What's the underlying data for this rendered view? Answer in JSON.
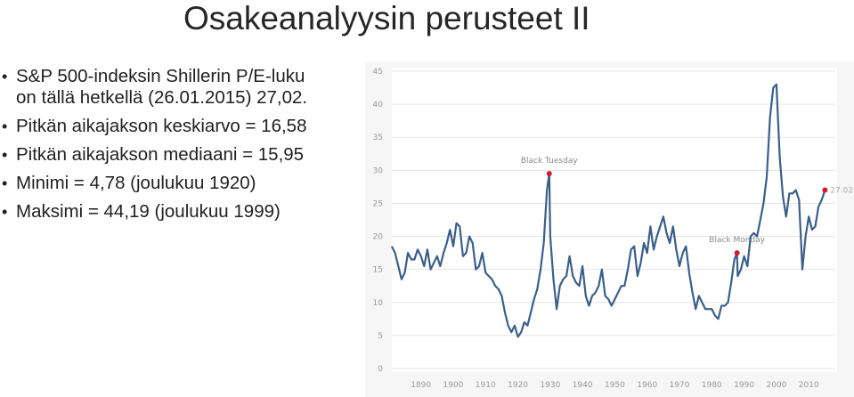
{
  "slide": {
    "title": "Osakeanalyysin perusteet II",
    "bullets": [
      "S&P 500-indeksin Shillerin P/E-luku\non tällä hetkellä (26.01.2015) 27,02.",
      "Pitkän aikajakson keskiarvo = 16,58",
      "Pitkän aikajakson mediaani = 15,95",
      "Minimi = 4,78 (joulukuu 1920)",
      "Maksimi = 44,19 (joulukuu 1999)"
    ]
  },
  "colors": {
    "line": "#3a5f8a",
    "marker": "#d01c2c",
    "grid": "#e6e6e6",
    "background": "#f6f6f6"
  },
  "chart_data": {
    "type": "line",
    "title": "",
    "xlabel": "",
    "ylabel": "",
    "xlim": [
      1881,
      2016
    ],
    "ylim": [
      0,
      45
    ],
    "yticks": [
      0,
      5,
      10,
      15,
      20,
      25,
      30,
      35,
      40,
      45
    ],
    "xticks": [
      1890,
      1900,
      1910,
      1920,
      1930,
      1940,
      1950,
      1960,
      1970,
      1980,
      1990,
      2000,
      2010
    ],
    "grid": "horizontal",
    "series": [
      {
        "x": [
          1881,
          1882,
          1883,
          1884,
          1885,
          1886,
          1887,
          1888,
          1889,
          1890,
          1891,
          1892,
          1893,
          1894,
          1895,
          1896,
          1897,
          1898,
          1899,
          1900,
          1901,
          1902,
          1903,
          1904,
          1905,
          1906,
          1907,
          1908,
          1909,
          1910,
          1911,
          1912,
          1913,
          1914,
          1915,
          1916,
          1917,
          1918,
          1919,
          1920,
          1921,
          1922,
          1923,
          1924,
          1925,
          1926,
          1927,
          1928,
          1929,
          1929.7,
          1930,
          1931,
          1932,
          1933,
          1934,
          1935,
          1936,
          1937,
          1938,
          1939,
          1940,
          1941,
          1942,
          1943,
          1944,
          1945,
          1946,
          1947,
          1948,
          1949,
          1950,
          1951,
          1952,
          1953,
          1954,
          1955,
          1956,
          1957,
          1958,
          1959,
          1960,
          1961,
          1962,
          1963,
          1964,
          1965,
          1966,
          1967,
          1968,
          1969,
          1970,
          1971,
          1972,
          1973,
          1974,
          1975,
          1976,
          1977,
          1978,
          1979,
          1980,
          1981,
          1982,
          1983,
          1984,
          1985,
          1986,
          1987,
          1987.8,
          1988,
          1989,
          1990,
          1991,
          1992,
          1993,
          1994,
          1995,
          1996,
          1997,
          1998,
          1999,
          2000,
          2001,
          2002,
          2003,
          2004,
          2005,
          2006,
          2007,
          2008,
          2009,
          2010,
          2011,
          2012,
          2013,
          2014,
          2015
        ],
        "y": [
          18.5,
          17.5,
          15.5,
          13.5,
          14.5,
          17.5,
          16.5,
          16.5,
          18.0,
          17.0,
          15.5,
          18.0,
          15.0,
          16.0,
          17.0,
          15.5,
          17.5,
          19.0,
          21.0,
          18.5,
          22.0,
          21.5,
          17.0,
          17.5,
          20.0,
          19.0,
          15.0,
          15.5,
          17.5,
          14.5,
          14.0,
          13.5,
          12.5,
          12.0,
          11.0,
          8.5,
          6.5,
          5.5,
          6.5,
          4.8,
          5.5,
          7.0,
          6.5,
          8.5,
          10.5,
          12.0,
          15.0,
          19.0,
          27.0,
          29.5,
          20.0,
          13.5,
          9.0,
          12.5,
          13.5,
          14.0,
          17.0,
          14.0,
          13.0,
          12.5,
          15.5,
          11.0,
          9.5,
          11.0,
          11.5,
          12.5,
          15.0,
          11.0,
          10.5,
          9.5,
          10.5,
          11.5,
          12.5,
          12.5,
          15.0,
          18.0,
          18.5,
          14.0,
          16.0,
          19.0,
          17.5,
          21.5,
          18.0,
          20.0,
          21.5,
          23.0,
          20.5,
          19.0,
          21.5,
          18.0,
          15.5,
          17.5,
          18.5,
          14.5,
          11.5,
          9.0,
          11.0,
          10.0,
          9.0,
          9.0,
          9.0,
          8.0,
          7.5,
          9.5,
          9.5,
          10.0,
          13.0,
          16.5,
          17.5,
          14.0,
          15.0,
          17.0,
          15.5,
          20.0,
          20.5,
          20.0,
          22.5,
          25.0,
          29.0,
          38.0,
          42.5,
          43.0,
          32.0,
          26.0,
          23.0,
          26.5,
          26.5,
          27.0,
          25.5,
          15.0,
          20.0,
          23.0,
          21.0,
          21.5,
          24.5,
          25.5,
          27.02
        ]
      }
    ],
    "annotations": [
      {
        "label": "Black Tuesday",
        "x": 1929.7,
        "y": 29.5
      },
      {
        "label": "Black Monday",
        "x": 1987.8,
        "y": 17.5
      }
    ],
    "end_label": "27.02"
  }
}
